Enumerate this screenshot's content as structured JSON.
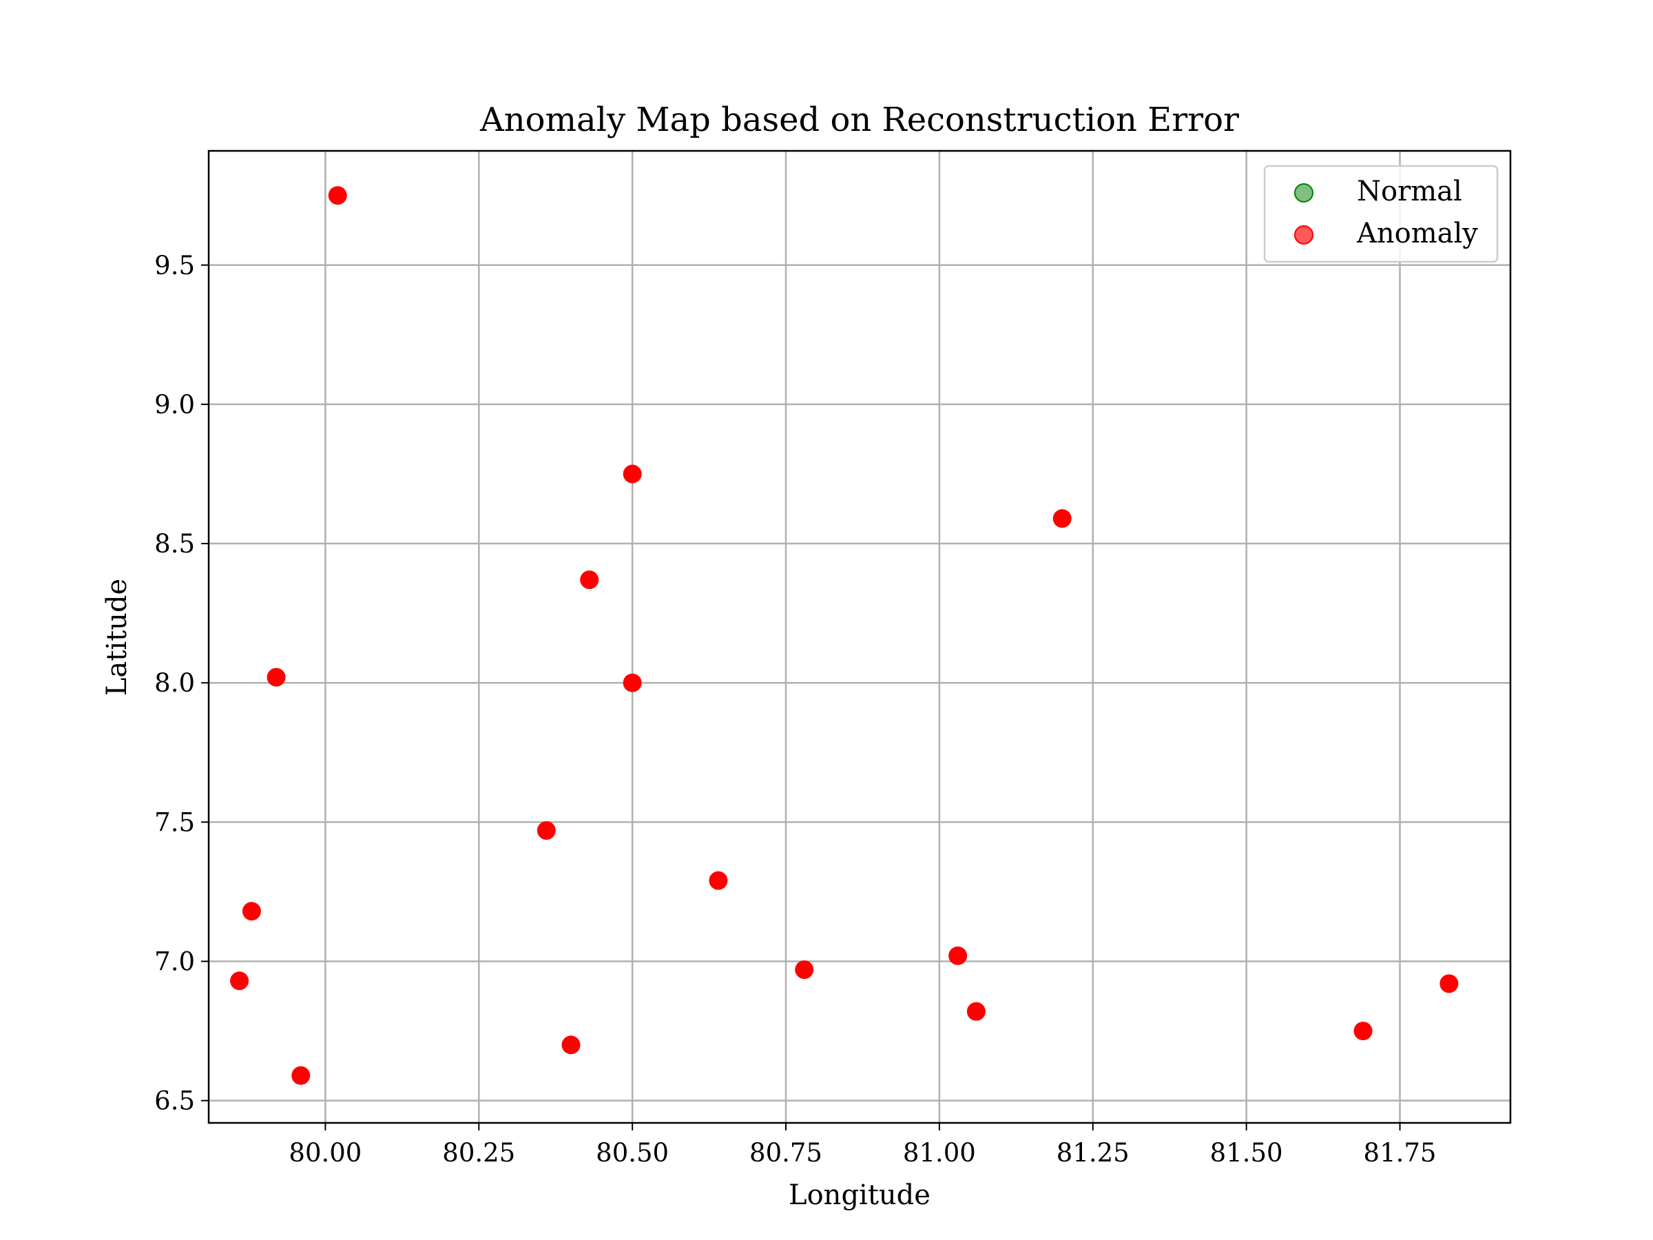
{
  "chart_data": {
    "type": "scatter",
    "title": "Anomaly Map based on Reconstruction Error",
    "xlabel": "Longitude",
    "ylabel": "Latitude",
    "xlim": [
      79.81,
      81.93
    ],
    "ylim": [
      6.42,
      9.91
    ],
    "xticks": [
      80.0,
      80.25,
      80.5,
      80.75,
      81.0,
      81.25,
      81.5,
      81.75
    ],
    "xtick_labels": [
      "80.00",
      "80.25",
      "80.50",
      "80.75",
      "81.00",
      "81.25",
      "81.50",
      "81.75"
    ],
    "yticks": [
      6.5,
      7.0,
      7.5,
      8.0,
      8.5,
      9.0,
      9.5
    ],
    "ytick_labels": [
      "6.5",
      "7.0",
      "7.5",
      "8.0",
      "8.5",
      "9.0",
      "9.5"
    ],
    "grid": true,
    "legend_position": "top-right",
    "series": [
      {
        "name": "Normal",
        "color": "#008000",
        "points": []
      },
      {
        "name": "Anomaly",
        "color": "#ff0000",
        "points": [
          {
            "x": 80.02,
            "y": 9.75
          },
          {
            "x": 80.5,
            "y": 8.75
          },
          {
            "x": 81.2,
            "y": 8.59
          },
          {
            "x": 80.43,
            "y": 8.37
          },
          {
            "x": 79.92,
            "y": 8.02
          },
          {
            "x": 80.5,
            "y": 8.0
          },
          {
            "x": 80.36,
            "y": 7.47
          },
          {
            "x": 80.64,
            "y": 7.29
          },
          {
            "x": 79.88,
            "y": 7.18
          },
          {
            "x": 81.03,
            "y": 7.02
          },
          {
            "x": 80.78,
            "y": 6.97
          },
          {
            "x": 79.86,
            "y": 6.93
          },
          {
            "x": 81.83,
            "y": 6.92
          },
          {
            "x": 81.06,
            "y": 6.82
          },
          {
            "x": 81.69,
            "y": 6.75
          },
          {
            "x": 80.4,
            "y": 6.7
          },
          {
            "x": 79.96,
            "y": 6.59
          }
        ]
      }
    ]
  }
}
